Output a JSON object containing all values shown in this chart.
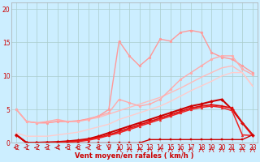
{
  "background_color": "#cceeff",
  "grid_color": "#aacccc",
  "x_labels": [
    "0",
    "1",
    "2",
    "3",
    "4",
    "5",
    "6",
    "7",
    "8",
    "9",
    "10",
    "11",
    "12",
    "13",
    "14",
    "15",
    "16",
    "17",
    "18",
    "19",
    "20",
    "21",
    "22",
    "23"
  ],
  "xlabel": "Vent moyen/en rafales ( km/h )",
  "ylabel_ticks": [
    0,
    5,
    10,
    15,
    20
  ],
  "lines": [
    {
      "x": [
        0,
        1,
        2,
        3,
        4,
        5,
        6,
        7,
        8,
        9,
        10,
        11,
        12,
        13,
        14,
        15,
        16,
        17,
        18,
        19,
        20,
        21,
        22,
        23
      ],
      "y": [
        5.0,
        3.2,
        3.0,
        3.0,
        3.2,
        3.2,
        3.3,
        3.5,
        3.8,
        4.3,
        4.8,
        5.3,
        5.8,
        6.3,
        6.8,
        7.5,
        8.2,
        9.0,
        9.8,
        10.5,
        11.2,
        11.5,
        10.5,
        8.5
      ],
      "color": "#ffbbbb",
      "linewidth": 1.0,
      "marker": null,
      "markersize": 0,
      "alpha": 1.0
    },
    {
      "x": [
        0,
        1,
        2,
        3,
        4,
        5,
        6,
        7,
        8,
        9,
        10,
        11,
        12,
        13,
        14,
        15,
        16,
        17,
        18,
        19,
        20,
        21,
        22,
        23
      ],
      "y": [
        5.0,
        3.2,
        3.0,
        3.0,
        3.2,
        3.2,
        3.3,
        3.6,
        4.0,
        5.0,
        15.2,
        13.0,
        11.5,
        12.8,
        15.5,
        15.2,
        16.5,
        16.8,
        16.5,
        13.5,
        12.8,
        12.5,
        11.5,
        10.5
      ],
      "color": "#ff9999",
      "linewidth": 1.0,
      "marker": "o",
      "markersize": 2.0,
      "alpha": 1.0
    },
    {
      "x": [
        0,
        1,
        2,
        3,
        4,
        5,
        6,
        7,
        8,
        9,
        10,
        11,
        12,
        13,
        14,
        15,
        16,
        17,
        18,
        19,
        20,
        21,
        22,
        23
      ],
      "y": [
        5.0,
        3.2,
        3.0,
        3.2,
        3.5,
        3.2,
        3.2,
        3.5,
        4.0,
        4.5,
        6.5,
        6.0,
        5.5,
        5.8,
        6.5,
        8.0,
        9.5,
        10.5,
        11.5,
        12.5,
        13.0,
        13.0,
        11.0,
        10.2
      ],
      "color": "#ffaaaa",
      "linewidth": 1.0,
      "marker": "o",
      "markersize": 2.0,
      "alpha": 1.0
    },
    {
      "x": [
        0,
        1,
        2,
        3,
        4,
        5,
        6,
        7,
        8,
        9,
        10,
        11,
        12,
        13,
        14,
        15,
        16,
        17,
        18,
        19,
        20,
        21,
        22,
        23
      ],
      "y": [
        1.5,
        1.0,
        1.0,
        1.0,
        1.2,
        1.4,
        1.6,
        2.0,
        2.4,
        2.8,
        3.5,
        4.0,
        4.5,
        5.0,
        5.5,
        6.2,
        7.0,
        7.8,
        8.5,
        9.2,
        10.0,
        10.5,
        10.5,
        8.5
      ],
      "color": "#ffcccc",
      "linewidth": 1.0,
      "marker": null,
      "markersize": 0,
      "alpha": 1.0
    },
    {
      "x": [
        0,
        1,
        2,
        3,
        4,
        5,
        6,
        7,
        8,
        9,
        10,
        11,
        12,
        13,
        14,
        15,
        16,
        17,
        18,
        19,
        20,
        21,
        22,
        23
      ],
      "y": [
        1.2,
        0.05,
        0.05,
        0.1,
        0.15,
        0.25,
        0.4,
        0.6,
        1.0,
        1.5,
        2.0,
        2.5,
        3.0,
        3.5,
        4.0,
        4.5,
        5.0,
        5.5,
        5.8,
        6.2,
        6.5,
        5.0,
        3.0,
        1.2
      ],
      "color": "#cc0000",
      "linewidth": 1.5,
      "marker": "D",
      "markersize": 2.0,
      "alpha": 1.0
    },
    {
      "x": [
        0,
        1,
        2,
        3,
        4,
        5,
        6,
        7,
        8,
        9,
        10,
        11,
        12,
        13,
        14,
        15,
        16,
        17,
        18,
        19,
        20,
        21,
        22,
        23
      ],
      "y": [
        1.2,
        0.0,
        0.0,
        0.0,
        0.1,
        0.2,
        0.3,
        0.5,
        0.8,
        1.2,
        1.7,
        2.2,
        2.7,
        3.2,
        3.7,
        4.2,
        4.7,
        5.2,
        5.5,
        5.7,
        5.5,
        5.2,
        3.0,
        1.1
      ],
      "color": "#dd1111",
      "linewidth": 1.3,
      "marker": "s",
      "markersize": 2.0,
      "alpha": 1.0
    },
    {
      "x": [
        0,
        1,
        2,
        3,
        4,
        5,
        6,
        7,
        8,
        9,
        10,
        11,
        12,
        13,
        14,
        15,
        16,
        17,
        18,
        19,
        20,
        21,
        22,
        23
      ],
      "y": [
        1.2,
        0.0,
        0.0,
        0.0,
        0.0,
        0.1,
        0.2,
        0.4,
        0.7,
        1.1,
        1.5,
        2.0,
        2.5,
        3.0,
        3.5,
        4.0,
        4.5,
        5.0,
        5.3,
        5.5,
        5.3,
        4.8,
        1.2,
        1.1
      ],
      "color": "#ee2222",
      "linewidth": 1.1,
      "marker": "^",
      "markersize": 2.0,
      "alpha": 1.0
    },
    {
      "x": [
        0,
        1,
        2,
        3,
        4,
        5,
        6,
        7,
        8,
        9,
        10,
        11,
        12,
        13,
        14,
        15,
        16,
        17,
        18,
        19,
        20,
        21,
        22,
        23
      ],
      "y": [
        1.2,
        0.0,
        0.0,
        0.0,
        0.0,
        0.0,
        0.0,
        0.0,
        0.0,
        0.0,
        0.0,
        0.0,
        0.0,
        0.5,
        0.5,
        0.5,
        0.5,
        0.5,
        0.5,
        0.5,
        0.5,
        0.5,
        0.5,
        1.2
      ],
      "color": "#cc0000",
      "linewidth": 1.0,
      "marker": "s",
      "markersize": 1.8,
      "alpha": 1.0
    }
  ],
  "tick_fontsize": 5.5,
  "xlabel_fontsize": 6.0,
  "ylim": [
    0,
    21
  ],
  "xlim": [
    -0.5,
    23.5
  ]
}
